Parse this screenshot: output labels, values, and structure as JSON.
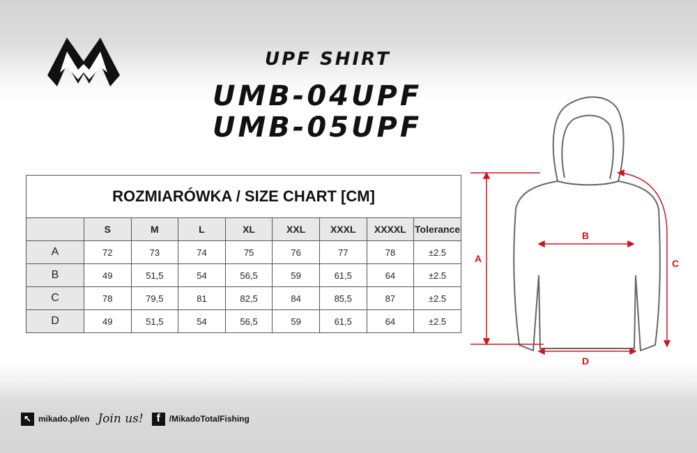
{
  "header": {
    "subtitle": "UPF SHIRT",
    "models": [
      "UMB-04UPF",
      "UMB-05UPF"
    ]
  },
  "table": {
    "title": "ROZMIARÓWKA / SIZE CHART [CM]",
    "columns": [
      "",
      "S",
      "M",
      "L",
      "XL",
      "XXL",
      "XXXL",
      "XXXXL",
      "Tolerance"
    ],
    "rows": [
      {
        "label": "A",
        "values": [
          "72",
          "73",
          "74",
          "75",
          "76",
          "77",
          "78",
          "±2.5"
        ]
      },
      {
        "label": "B",
        "values": [
          "49",
          "51,5",
          "54",
          "56,5",
          "59",
          "61,5",
          "64",
          "±2.5"
        ]
      },
      {
        "label": "C",
        "values": [
          "78",
          "79,5",
          "81",
          "82,5",
          "84",
          "85,5",
          "87",
          "±2.5"
        ]
      },
      {
        "label": "D",
        "values": [
          "49",
          "51,5",
          "54",
          "56,5",
          "59",
          "61,5",
          "64",
          "±2.5"
        ]
      }
    ]
  },
  "diagram": {
    "labels": {
      "a": "A",
      "b": "B",
      "c": "C",
      "d": "D"
    },
    "accent": "#d0141e"
  },
  "footer": {
    "website": "mikado.pl/en",
    "join": "Join us!",
    "facebook": "/MikadoTotalFishing"
  }
}
